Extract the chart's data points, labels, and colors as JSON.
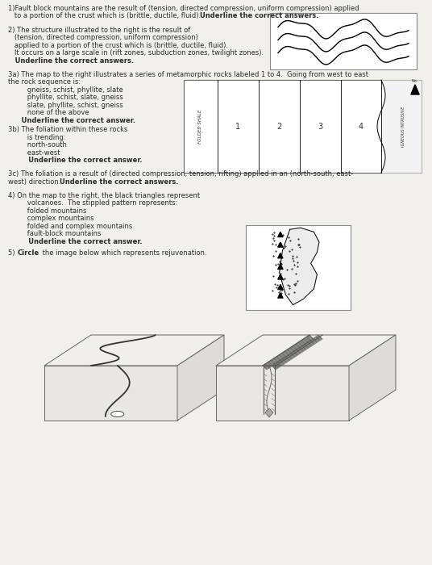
{
  "bg_top_color": "#f2f0ed",
  "bg_bottom_color": "#8a8a86",
  "paper_color": "#f2f0ed",
  "text_color": "#2a2a2a",
  "font_size": 6.0,
  "q1_line1": "1)Fault block mountains are the result of (tension, directed compression, uniform compression) applied",
  "q1_line2": "   to a portion of the crust which is (brittle, ductile, fluid).  Underline the correct answers.",
  "q2_line1": "2) The structure illustrated to the right is the result of",
  "q2_line2": "   (tension, directed compression, uniform compression)",
  "q2_line3": "   applied to a portion of the crust which is (brittle, ductile, fluid).",
  "q2_line4": "   It occurs on a large scale in (rift zones, subduction zones, twilight zones).",
  "q2_bold": "   Underline the correct answers.",
  "q3a_line1": "3a) The map to the right illustrates a series of metamorphic rocks labeled 1 to 4.  Going from west to east",
  "q3a_line2": "the rock sequence is:",
  "q3a_o1": "      gneiss, schist, phyllite, slate",
  "q3a_o2": "      phyllite, schist, slate, gneiss",
  "q3a_o3": "      slate, phyllite, schist, gneiss",
  "q3a_o4": "      none of the above",
  "q3a_bold": "   Underline the correct answer.",
  "q3b_line1": "3b) The foliation within these rocks",
  "q3b_line2": "      is trending:",
  "q3b_o1": "      north-south",
  "q3b_o2": "      east-west",
  "q3b_bold": "      Underline the correct answer.",
  "q3c_line1": "3c) The foliation is a result of (directed compression, tension, rifting) applied in an (north-south, east-",
  "q3c_line2": "west) direction.  Underline the correct answers.",
  "q4_line1": "4) On the map to the right, the black triangles represent",
  "q4_line2": "      volcanoes.  The stippled pattern represents:",
  "q4_o1": "      folded mountains",
  "q4_o2": "      complex mountains",
  "q4_o3": "      folded and complex mountains",
  "q4_o4": "      fault-block mountains",
  "q4_bold": "      Underline the correct answer.",
  "q5_line": "5) Circle the image below which represents rejuvenation."
}
